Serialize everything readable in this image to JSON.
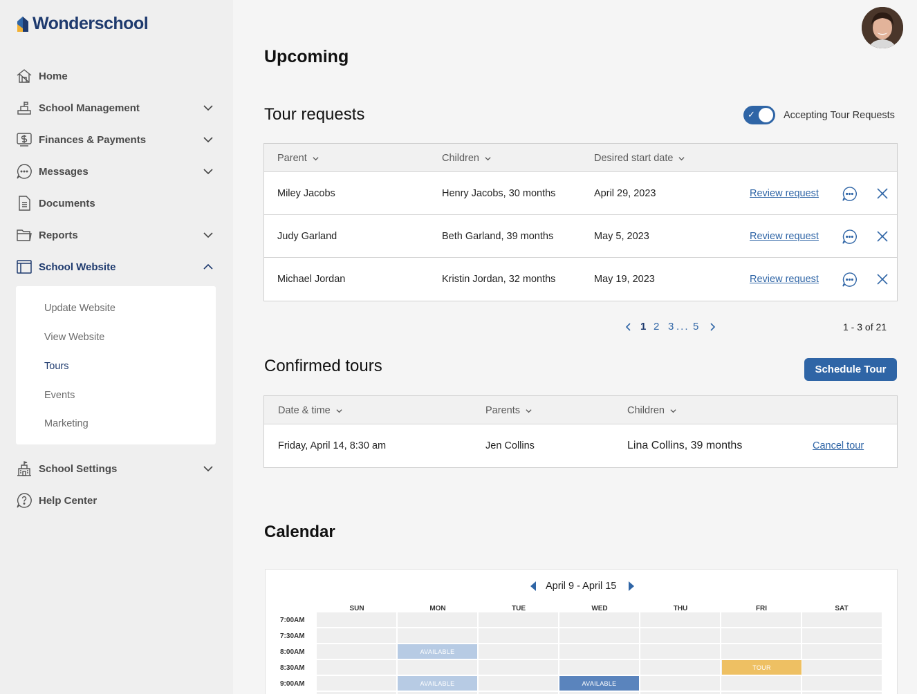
{
  "brand": {
    "name": "Wonderschool"
  },
  "sidebar": {
    "items": [
      {
        "label": "Home",
        "icon": "home-icon"
      },
      {
        "label": "School Management",
        "icon": "school-management-icon"
      },
      {
        "label": "Finances & Payments",
        "icon": "dollar-icon"
      },
      {
        "label": "Messages",
        "icon": "chat-icon"
      },
      {
        "label": "Documents",
        "icon": "document-icon"
      },
      {
        "label": "Reports",
        "icon": "folder-icon"
      },
      {
        "label": "School Website",
        "icon": "browser-icon"
      },
      {
        "label": "School Settings",
        "icon": "building-icon"
      },
      {
        "label": "Help Center",
        "icon": "help-icon"
      }
    ],
    "submenu": [
      "Update Website",
      "View Website",
      "Tours",
      "Events",
      "Marketing"
    ]
  },
  "page": {
    "title": "Upcoming",
    "tour_requests_title": "Tour requests",
    "toggle_label": "Accepting Tour Requests",
    "confirmed_title": "Confirmed tours",
    "schedule_button": "Schedule Tour",
    "calendar_title": "Calendar"
  },
  "tour_requests": {
    "columns": [
      "Parent",
      "Children",
      "Desired start date"
    ],
    "rows": [
      {
        "parent": "Miley Jacobs",
        "children": "Henry Jacobs, 30 months",
        "date": "April 29, 2023",
        "action": "Review request"
      },
      {
        "parent": "Judy Garland",
        "children": "Beth Garland, 39 months",
        "date": "May 5, 2023",
        "action": "Review request"
      },
      {
        "parent": "Michael Jordan",
        "children": "Kristin Jordan, 32 months",
        "date": "May 19, 2023",
        "action": "Review request"
      }
    ]
  },
  "pagination": {
    "pages": [
      "1",
      "2",
      "3",
      "...",
      "5"
    ],
    "summary": "1 - 3 of 21"
  },
  "confirmed_tours": {
    "columns": [
      "Date & time",
      "Parents",
      "Children"
    ],
    "rows": [
      {
        "datetime": "Friday, April 14, 8:30 am",
        "parents": "Jen Collins",
        "children": "Lina Collins, 39 months",
        "action": "Cancel tour"
      }
    ]
  },
  "calendar": {
    "range": "April 9 - April 15",
    "days": [
      "SUN",
      "MON",
      "TUE",
      "WED",
      "THU",
      "FRI",
      "SAT"
    ],
    "times": [
      "7:00AM",
      "7:30AM",
      "8:00AM",
      "8:30AM",
      "9:00AM"
    ],
    "slot_labels": {
      "available": "AVAILABLE",
      "tour": "TOUR"
    }
  },
  "colors": {
    "primary": "#2f65a6",
    "brand_dark": "#1e3a6e",
    "available_light": "#b7cbe4",
    "available_dark": "#5a84bd",
    "tour": "#eec063"
  }
}
